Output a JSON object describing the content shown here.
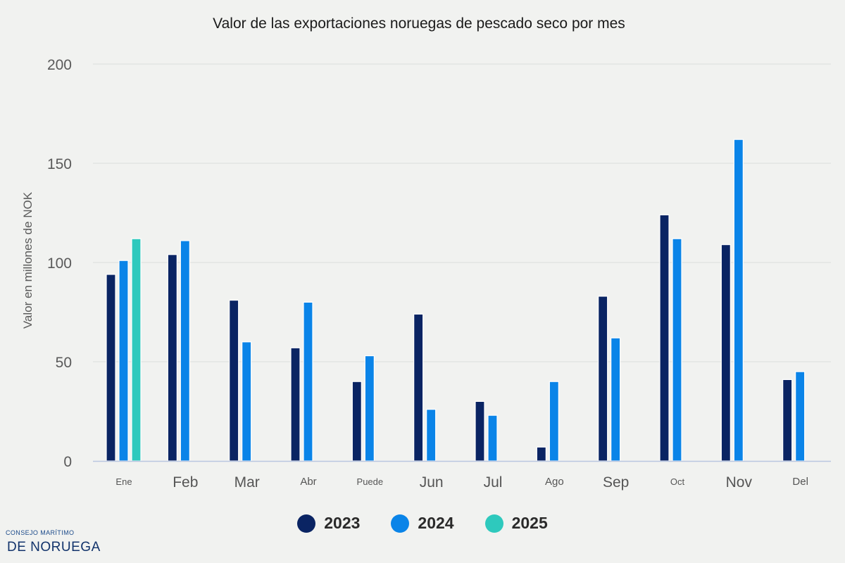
{
  "chart_data": {
    "type": "bar",
    "title": "Valor de las exportaciones noruegas de pescado seco por mes",
    "ylabel": "Valor en millones de NOK",
    "xlabel": "",
    "ylim": [
      0,
      200
    ],
    "yticks": [
      0,
      50,
      100,
      150,
      200
    ],
    "grid": true,
    "legend_position": "bottom",
    "categories": [
      "Ene",
      "Feb",
      "Mar",
      "Abr",
      "Puede",
      "Jun",
      "Jul",
      "Ago",
      "Sep",
      "Oct",
      "Nov",
      "Del"
    ],
    "series": [
      {
        "name": "2023",
        "color": "#0a2463",
        "values": [
          94,
          104,
          81,
          57,
          40,
          74,
          30,
          7,
          83,
          124,
          109,
          41
        ]
      },
      {
        "name": "2024",
        "color": "#0a84e8",
        "values": [
          101,
          111,
          60,
          80,
          53,
          26,
          23,
          40,
          62,
          112,
          162,
          45
        ]
      },
      {
        "name": "2025",
        "color": "#2ec9bd",
        "values": [
          112,
          null,
          null,
          null,
          null,
          null,
          null,
          null,
          null,
          null,
          null,
          null
        ]
      }
    ]
  },
  "branding": {
    "line1": "CONSEJO MARÍTIMO",
    "line2": "DE NORUEGA"
  }
}
